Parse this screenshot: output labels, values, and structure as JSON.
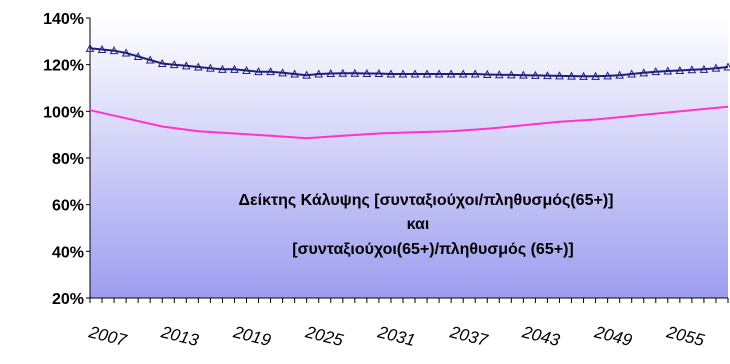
{
  "chart_data": {
    "type": "line",
    "xlim": [
      2007,
      2060
    ],
    "ylim": [
      20,
      140
    ],
    "y_ticks": [
      "20%",
      "40%",
      "60%",
      "80%",
      "100%",
      "120%",
      "140%"
    ],
    "y_tick_values": [
      20,
      40,
      60,
      80,
      100,
      120,
      140
    ],
    "x_ticks": [
      "2007",
      "2013",
      "2019",
      "2025",
      "2031",
      "2037",
      "2043",
      "2049",
      "2055"
    ],
    "x_tick_values": [
      2007,
      2013,
      2019,
      2025,
      2031,
      2037,
      2043,
      2049,
      2055
    ],
    "grid": false,
    "legend": "none",
    "annotation": {
      "line1": "Δείκτης Κάλυψης  [συνταξιούχοι/πληθυσμός(65+)]",
      "line2": "και",
      "line3": "[συνταξιούχοι(65+)/πληθυσμός (65+)]"
    },
    "series": [
      {
        "color": "#1f1f7a",
        "marker": "triangle",
        "x": [
          2007,
          2008,
          2009,
          2010,
          2011,
          2012,
          2013,
          2014,
          2015,
          2016,
          2017,
          2018,
          2019,
          2020,
          2021,
          2022,
          2023,
          2024,
          2025,
          2026,
          2027,
          2028,
          2029,
          2030,
          2031,
          2032,
          2033,
          2034,
          2035,
          2036,
          2037,
          2038,
          2039,
          2040,
          2041,
          2042,
          2043,
          2044,
          2045,
          2046,
          2047,
          2048,
          2049,
          2050,
          2051,
          2052,
          2053,
          2054,
          2055,
          2056,
          2057,
          2058,
          2059,
          2060
        ],
        "values": [
          127,
          126.5,
          126,
          125,
          123.5,
          122,
          120.5,
          120,
          119.5,
          119,
          118.5,
          118,
          118,
          117.5,
          117,
          117,
          116.5,
          116,
          115.5,
          116,
          116.2,
          116.3,
          116.3,
          116.2,
          116.2,
          116,
          116,
          116,
          116,
          116,
          116,
          116,
          116,
          115.8,
          115.7,
          115.6,
          115.5,
          115.4,
          115.3,
          115.2,
          115.1,
          115,
          115,
          115.2,
          115.5,
          116,
          116.5,
          117,
          117.3,
          117.5,
          117.8,
          118,
          118.5,
          119
        ]
      },
      {
        "color": "#ff33cc",
        "marker": "none",
        "x": [
          2007,
          2010,
          2013,
          2016,
          2019,
          2022,
          2025,
          2028,
          2031,
          2034,
          2037,
          2040,
          2043,
          2046,
          2049,
          2052,
          2055,
          2058,
          2060
        ],
        "values": [
          100.5,
          97,
          93.5,
          91.5,
          90.5,
          89.5,
          88.5,
          89.5,
          90.5,
          91,
          91.5,
          92.5,
          94,
          95.5,
          96.5,
          98,
          99.5,
          101,
          102
        ]
      }
    ]
  }
}
